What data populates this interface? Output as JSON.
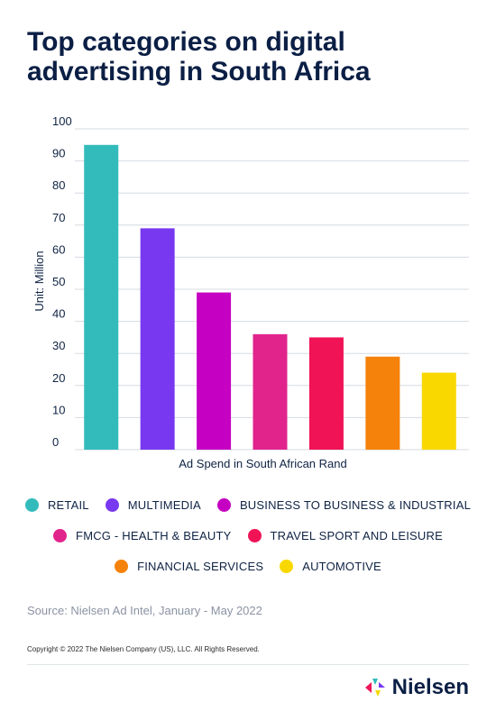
{
  "title": "Top categories on digital advertising in South Africa",
  "chart_data": {
    "type": "bar",
    "categories": [
      "RETAIL",
      "MULTIMEDIA",
      "BUSINESS TO BUSINESS & INDUSTRIAL",
      "FMCG - HEALTH & BEAUTY",
      "TRAVEL SPORT AND LEISURE",
      "FINANCIAL SERVICES",
      "AUTOMOTIVE"
    ],
    "values": [
      95,
      69,
      49,
      36,
      35,
      29,
      24
    ],
    "colors": [
      "#33bbbb",
      "#7838f0",
      "#c500c2",
      "#e1248c",
      "#f01457",
      "#f5820a",
      "#f9d800"
    ],
    "xlabel": "Ad Spend in South African Rand",
    "ylabel": "Unit: Million",
    "ylim": [
      0,
      100
    ],
    "yticks": [
      0,
      10,
      20,
      30,
      40,
      50,
      60,
      70,
      80,
      90,
      100
    ],
    "grid": true,
    "legend": "bottom"
  },
  "legend_rows": [
    [
      0,
      1,
      2
    ],
    [
      3,
      4
    ],
    [
      5,
      6
    ]
  ],
  "source": "Source: Nielsen Ad Intel, January - May 2022",
  "copyright": "Copyright © 2022 The Nielsen Company (US), LLC. All Rights Reserved.",
  "brand": {
    "name": "Nielsen",
    "logo_colors": [
      "#f01457",
      "#33bbbb",
      "#7838f0",
      "#f9d800"
    ]
  }
}
